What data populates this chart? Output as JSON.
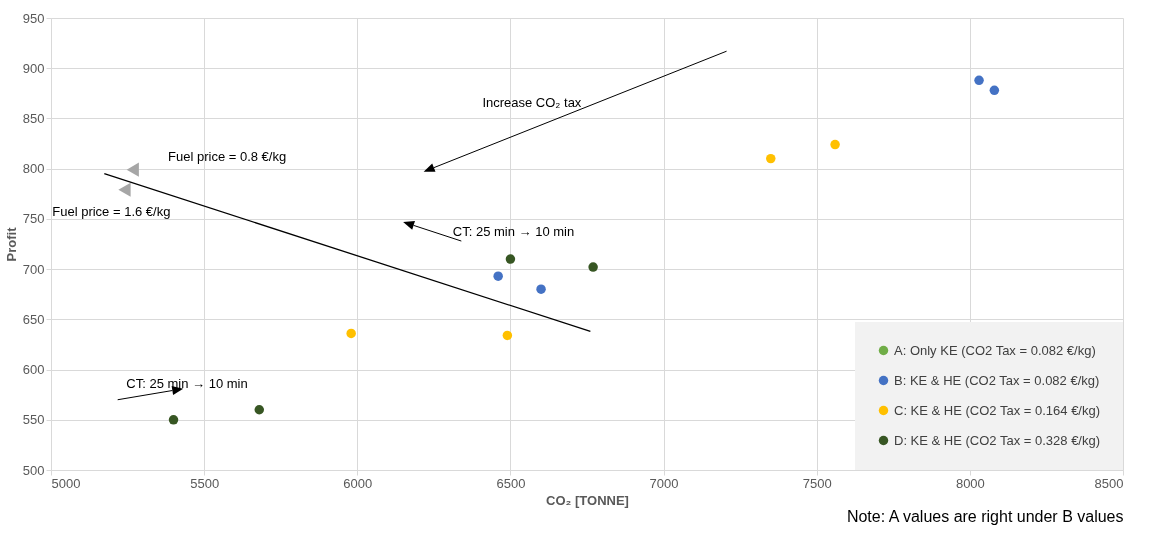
{
  "chart_data": {
    "type": "scatter",
    "xlabel": "CO₂ [TONNE]",
    "ylabel": "Profit",
    "xlim": [
      5000,
      8500
    ],
    "xticks": [
      5000,
      5500,
      6000,
      6500,
      7000,
      7500,
      8000,
      8500
    ],
    "ylim": [
      500,
      950
    ],
    "yticks": [
      500,
      550,
      600,
      650,
      700,
      750,
      800,
      850,
      900,
      950
    ],
    "grid": true,
    "legend": "bottom right",
    "marker": "circle",
    "series": [
      {
        "name": "A: Only KE (CO2 Tax = 0.082 €/kg)",
        "color": "#70ad47",
        "values": [
          null,
          null,
          null,
          null
        ]
      },
      {
        "name": "B: KE & HE (CO2 Tax = 0.082 €/kg)",
        "color": "#4472c4",
        "x": [
          6460,
          6600,
          8030,
          8080
        ],
        "values": [
          693,
          680,
          888,
          878
        ]
      },
      {
        "name": "C: KE & HE (CO2 Tax = 0.164 €/kg)",
        "color": "#ffc000",
        "x": [
          5980,
          6490,
          7350,
          7560
        ],
        "values": [
          636,
          634,
          810,
          824
        ]
      },
      {
        "name": "D: KE & HE (CO2 Tax = 0.328 €/kg)",
        "color": "#375623",
        "x": [
          5400,
          5680,
          6500,
          6770
        ],
        "values": [
          550,
          560,
          710,
          702
        ]
      },
      {
        "type": "scatter",
        "marker": "triangle",
        "color": "#a6a6a6",
        "x": [
          5267,
          5240
        ],
        "values": [
          799,
          779
        ]
      },
      {
        "type": "line",
        "marker": "none",
        "color": "#000000",
        "x": [
          5174,
          6761
        ],
        "values": [
          795,
          638
        ]
      }
    ],
    "annotations": [
      "Increase CO₂ tax",
      "Fuel price = 0.8 €/kg",
      "Fuel price = 1.6 €/kg",
      "CT: 25 min → 10 min",
      "CT: 25 min → 10 min",
      "Note: A values are right under B values"
    ]
  }
}
